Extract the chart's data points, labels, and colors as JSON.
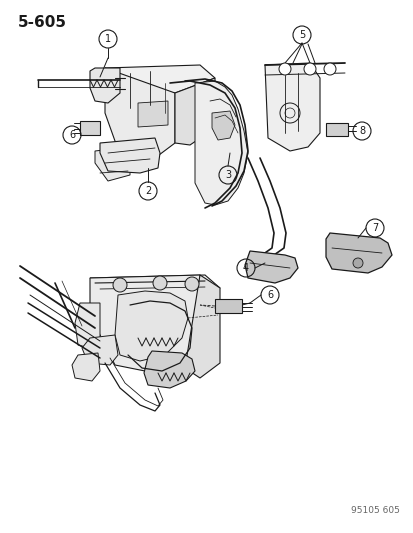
{
  "title": "5-605",
  "watermark": "95105 605",
  "bg_color": "#ffffff",
  "fg_color": "#1a1a1a",
  "title_fontsize": 11,
  "callout_fontsize": 7.5,
  "watermark_fontsize": 6.5
}
